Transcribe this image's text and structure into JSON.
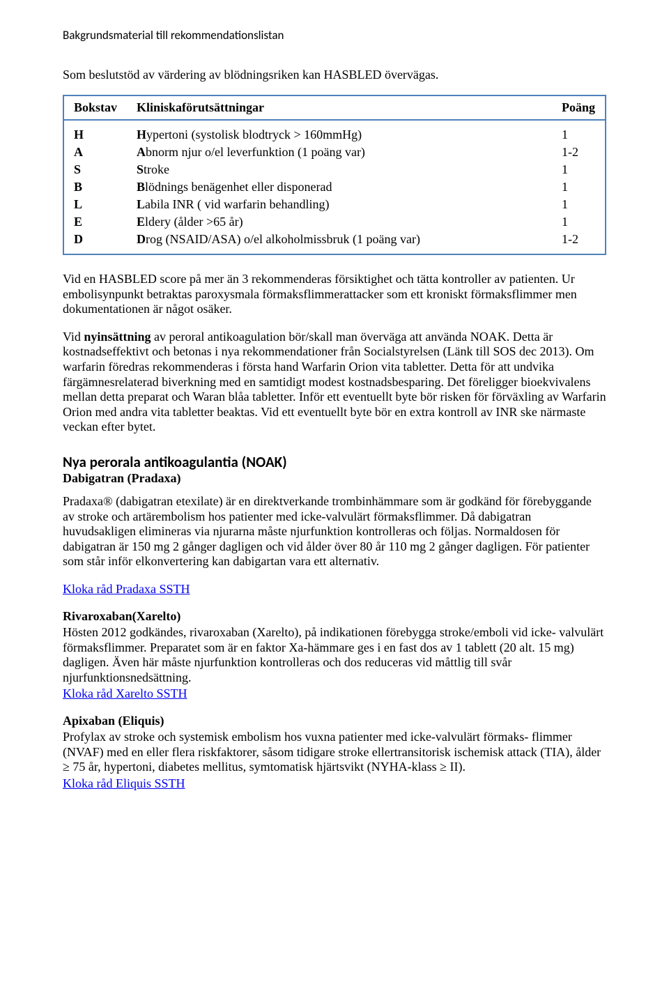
{
  "header": "Bakgrundsmaterial till rekommendationslistan",
  "intro": "Som beslutstöd av värdering av blödningsriken kan HASBLED övervägas.",
  "table": {
    "head": {
      "c1": "Bokstav",
      "c2": "Kliniskaförutsättningar",
      "c3": "Poäng"
    },
    "rows": [
      {
        "letter": "H",
        "bold": "H",
        "rest": "ypertoni (systolisk blodtryck > 160mmHg)",
        "score": "1"
      },
      {
        "letter": "A",
        "bold": "A",
        "rest": "bnorm njur o/el leverfunktion (1 poäng var)",
        "score": "1-2"
      },
      {
        "letter": "S",
        "bold": "S",
        "rest": "troke",
        "score": "1"
      },
      {
        "letter": "B",
        "bold": "B",
        "rest": "lödnings benägenhet eller disponerad",
        "score": "1"
      },
      {
        "letter": "L",
        "bold": "L",
        "rest": "abila INR ( vid warfarin behandling)",
        "score": "1"
      },
      {
        "letter": "E",
        "bold": "E",
        "rest": "ldery (ålder >65 år)",
        "score": "1"
      },
      {
        "letter": "D",
        "bold": "D",
        "rest": "rog (NSAID/ASA) o/el alkoholmissbruk (1 poäng var)",
        "score": "1-2"
      }
    ]
  },
  "para1": "Vid en HASBLED score på mer än 3 rekommenderas försiktighet och tätta kontroller av patienten. Ur embolisynpunkt betraktas paroxysmala förmaksflimmerattacker som ett kroniskt förmaksflimmer men dokumentationen är något osäker.",
  "para2_pre": "Vid ",
  "para2_bold": "nyinsättning",
  "para2_post": " av peroral antikoagulation bör/skall man överväga att använda NOAK. Detta är kostnadseffektivt och betonas i nya rekommendationer från Socialstyrelsen (Länk till SOS dec 2013). Om warfarin föredras rekommenderas i första hand Warfarin Orion vita tabletter. Detta för att undvika färgämnesrelaterad biverkning med en samtidigt modest kostnadsbesparing. Det föreligger bioekvivalens mellan detta preparat och Waran blåa tabletter. Inför ett eventuellt byte bör risken för förväxling av Warfarin Orion med andra vita tabletter beaktas. Vid ett eventuellt byte bör en extra kontroll av INR ske närmaste veckan efter bytet.",
  "noak_title": "Nya perorala antikoagulantia (NOAK)",
  "dabigatran_heading": "Dabigatran (Pradaxa)",
  "dabigatran_text": "Pradaxa® (dabigatran etexilate) är en direktverkande trombinhämmare som är godkänd för förebyggande av stroke och artärembolism hos patienter med icke-valvulärt förmaksflimmer. Då dabigatran huvudsakligen elimineras via njurarna måste njurfunktion kontrolleras och följas. Normaldosen för dabigatran är 150 mg 2 gånger dagligen och vid ålder över 80 år 110 mg 2 gånger dagligen. För patienter som står inför elkonvertering kan dabigartan vara ett alternativ.",
  "dabigatran_link": "Kloka råd Pradaxa SSTH",
  "rivaroxaban_heading": "Rivaroxaban(Xarelto)",
  "rivaroxaban_text": "Hösten 2012 godkändes, rivaroxaban (Xarelto), på indikationen förebygga stroke/emboli vid icke- valvulärt förmaksflimmer. Preparatet som är en faktor Xa-hämmare ges i en fast dos av 1 tablett (20 alt. 15 mg) dagligen. Även här måste njurfunktion kontrolleras och dos reduceras vid måttlig till svår njurfunktionsnedsättning.",
  "rivaroxaban_link": "Kloka råd Xarelto SSTH",
  "apixaban_heading": "Apixaban (Eliquis)",
  "apixaban_text": "Profylax av stroke och systemisk embolism hos vuxna patienter med icke-valvulärt förmaks- flimmer (NVAF) med en eller flera riskfaktorer, såsom tidigare stroke ellertransitorisk ischemisk attack (TIA), ålder ≥ 75 år, hypertoni, diabetes mellitus, symtomatisk hjärtsvikt (NYHA-klass ≥ II).",
  "apixaban_link": "Kloka råd Eliquis SSTH"
}
